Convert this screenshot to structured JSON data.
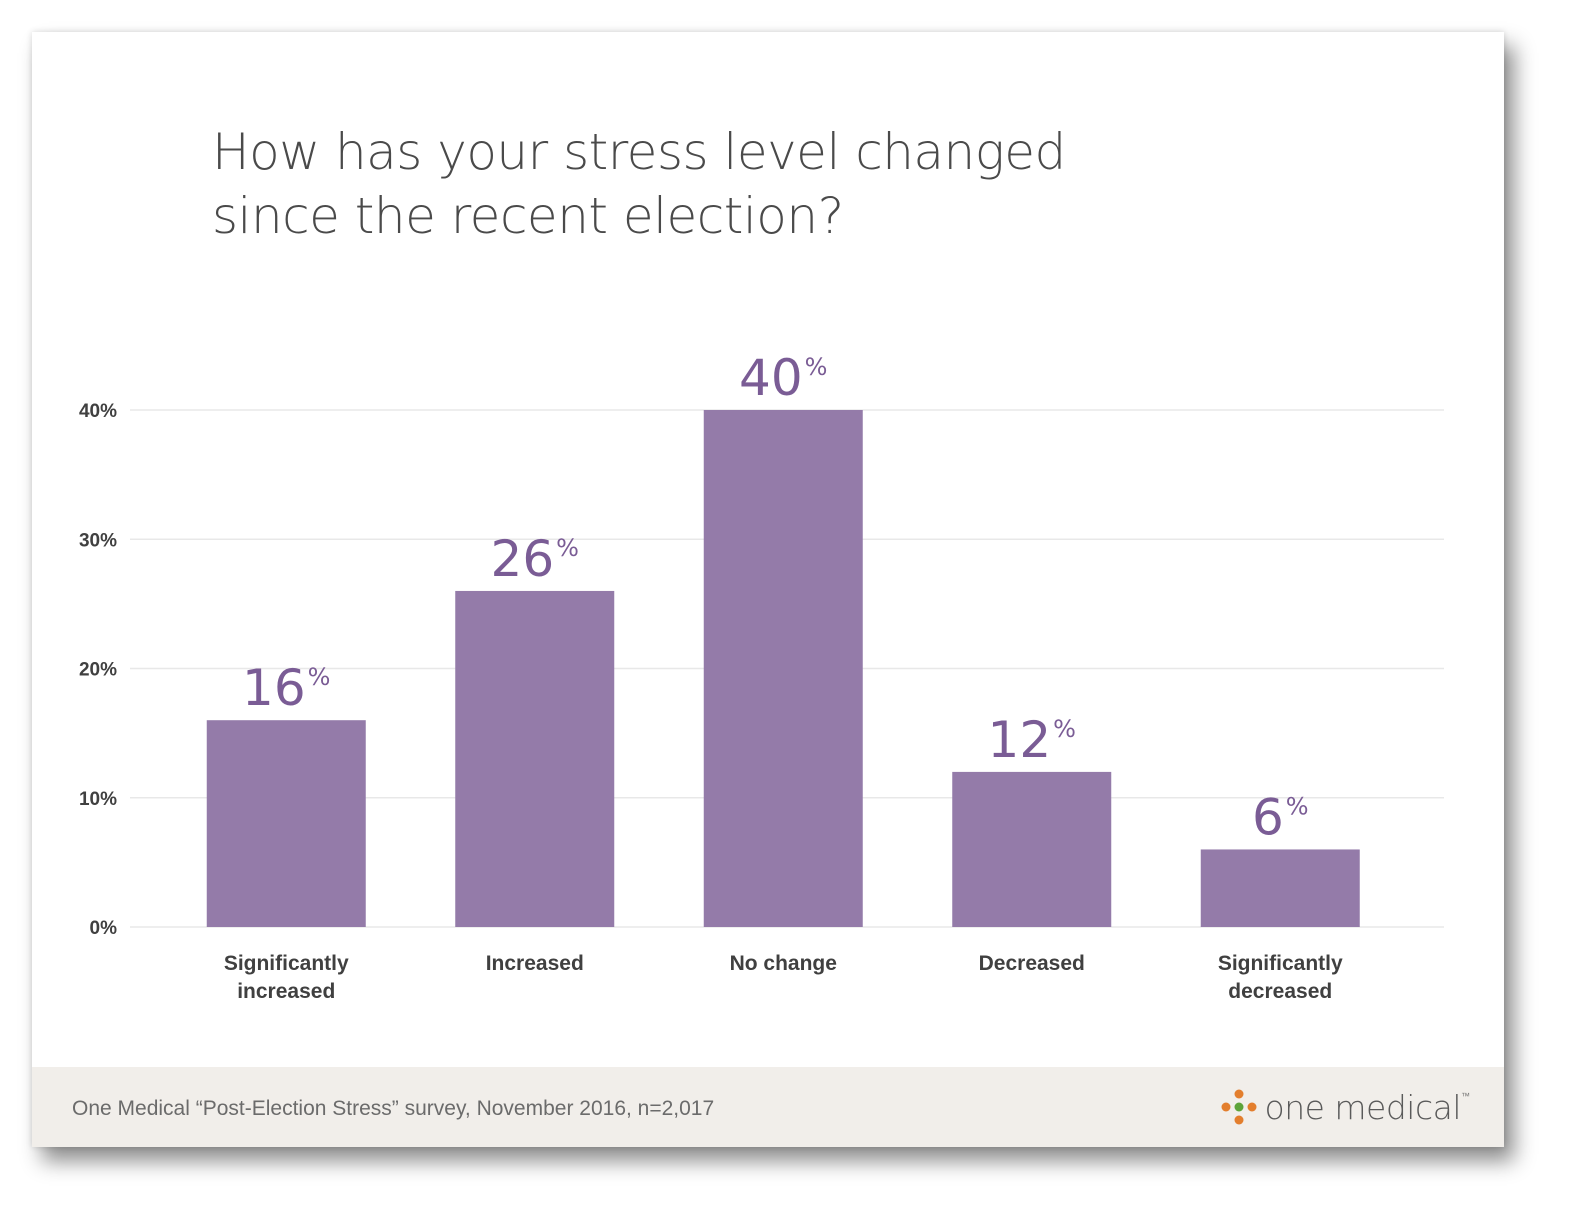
{
  "title_lines": [
    "How has your stress level changed",
    "since the recent election?"
  ],
  "footer": {
    "source": "One Medical “Post-Election Stress” survey, November 2016, n=2,017",
    "logo_text": "one medical",
    "logo_tm": "™"
  },
  "colors": {
    "bar": "#947ba9",
    "value_label": "#7a5c95",
    "grid": "#e8e8e8",
    "axis_text": "#404040"
  },
  "chart_data": {
    "type": "bar",
    "categories": [
      [
        "Significantly",
        "increased"
      ],
      [
        "Increased"
      ],
      [
        "No change"
      ],
      [
        "Decreased"
      ],
      [
        "Significantly",
        "decreased"
      ]
    ],
    "values": [
      16,
      26,
      40,
      12,
      6
    ],
    "value_labels": [
      "16",
      "26",
      "40",
      "12",
      "6"
    ],
    "value_suffix": "%",
    "yticks": [
      "0%",
      "10%",
      "20%",
      "30%",
      "40%"
    ],
    "ytick_values": [
      0,
      10,
      20,
      30,
      40
    ],
    "ylim": [
      0,
      40
    ],
    "grid": true
  }
}
